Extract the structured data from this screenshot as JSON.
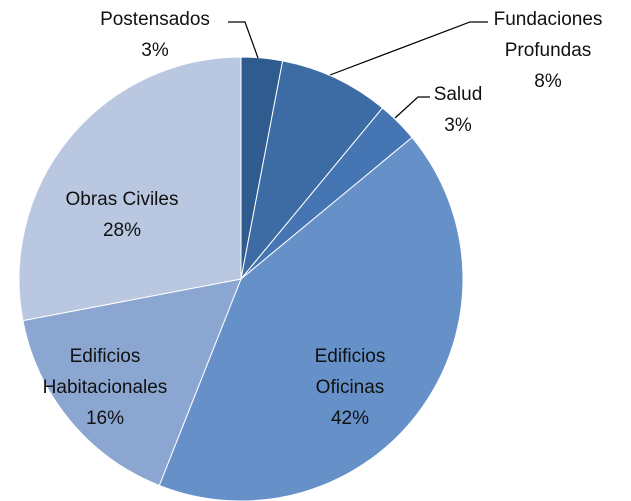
{
  "chart_data": {
    "type": "pie",
    "categories": [
      "Postensados",
      "Fundaciones Profundas",
      "Salud",
      "Edificios Oficinas",
      "Edificios Habitacionales",
      "Obras Civiles"
    ],
    "values": [
      3,
      8,
      3,
      42,
      16,
      28
    ],
    "value_labels": [
      "3%",
      "8%",
      "3%",
      "42%",
      "16%",
      "28%"
    ],
    "colors": [
      "#2f5b8e",
      "#3d6ba4",
      "#4576b3",
      "#6690c8",
      "#8ba7d1",
      "#b9c7e1"
    ]
  }
}
